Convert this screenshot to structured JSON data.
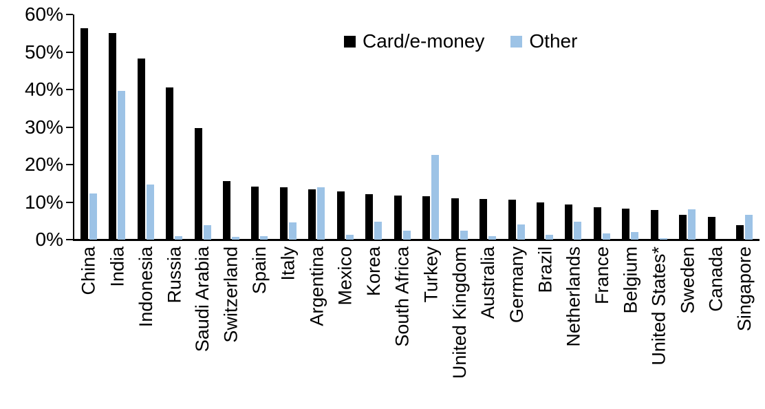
{
  "chart_data": {
    "type": "bar",
    "title": "",
    "xlabel": "",
    "ylabel": "",
    "ylim": [
      0,
      60
    ],
    "yticks": [
      0,
      10,
      20,
      30,
      40,
      50,
      60
    ],
    "ytick_suffix": "%",
    "grid": false,
    "legend_position": "top-center",
    "categories": [
      "China",
      "India",
      "Indonesia",
      "Russia",
      "Saudi Arabia",
      "Switzerland",
      "Spain",
      "Italy",
      "Argentina",
      "Mexico",
      "Korea",
      "South Africa",
      "Turkey",
      "United Kingdom",
      "Australia",
      "Germany",
      "Brazil",
      "Netherlands",
      "France",
      "Belgium",
      "United States*",
      "Sweden",
      "Canada",
      "Singapore"
    ],
    "series": [
      {
        "name": "Card/e-money",
        "color": "#000000",
        "values": [
          56.3,
          55.1,
          48.3,
          40.6,
          29.8,
          15.6,
          14.2,
          14.0,
          13.4,
          12.9,
          12.2,
          11.7,
          11.6,
          11.1,
          10.8,
          10.6,
          10.0,
          9.3,
          8.7,
          8.2,
          7.9,
          6.6,
          6.0,
          3.8
        ]
      },
      {
        "name": "Other",
        "color": "#9DC3E6",
        "values": [
          12.3,
          39.7,
          14.6,
          1.0,
          3.9,
          0.8,
          1.0,
          4.5,
          13.9,
          1.3,
          4.7,
          2.4,
          22.5,
          2.3,
          1.0,
          4.0,
          1.2,
          4.8,
          1.6,
          2.0,
          0.3,
          8.0,
          0.0,
          6.6
        ]
      }
    ]
  }
}
